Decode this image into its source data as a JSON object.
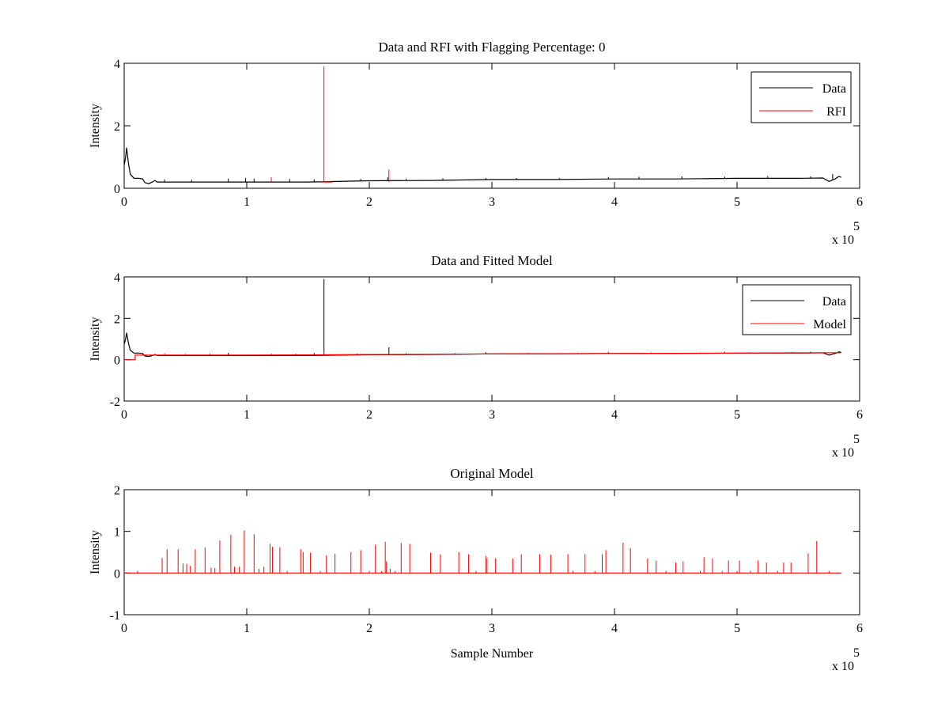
{
  "chart_data": [
    {
      "type": "line",
      "title": "Data and RFI with Flagging Percentage: 0",
      "xlabel": "",
      "ylabel": "Intensity",
      "xlim": [
        0,
        6
      ],
      "ylim": [
        0,
        4
      ],
      "xticks": [
        "0",
        "1",
        "2",
        "3",
        "4",
        "5",
        "6"
      ],
      "yticks": [
        "0",
        "2",
        "4"
      ],
      "x_multiplier_base": "x 10",
      "x_multiplier_exp": "5",
      "legend": {
        "position": "top-right",
        "entries": [
          "Data",
          "RFI"
        ]
      },
      "grid": false,
      "series": [
        {
          "name": "Data",
          "color": "#000000",
          "baseline": [
            [
              0,
              0.75
            ],
            [
              0.01,
              0.95
            ],
            [
              0.02,
              1.3
            ],
            [
              0.035,
              0.8
            ],
            [
              0.05,
              0.45
            ],
            [
              0.08,
              0.32
            ],
            [
              0.12,
              0.32
            ],
            [
              0.15,
              0.3
            ],
            [
              0.17,
              0.18
            ],
            [
              0.2,
              0.15
            ],
            [
              0.23,
              0.2
            ],
            [
              0.25,
              0.25
            ],
            [
              0.27,
              0.2
            ],
            [
              0.4,
              0.2
            ],
            [
              1.0,
              0.2
            ],
            [
              1.5,
              0.2
            ],
            [
              2.0,
              0.24
            ],
            [
              2.5,
              0.25
            ],
            [
              3.0,
              0.28
            ],
            [
              3.5,
              0.28
            ],
            [
              4.0,
              0.3
            ],
            [
              4.5,
              0.3
            ],
            [
              5.0,
              0.32
            ],
            [
              5.5,
              0.32
            ],
            [
              5.7,
              0.33
            ],
            [
              5.75,
              0.22
            ],
            [
              5.8,
              0.3
            ],
            [
              5.83,
              0.38
            ],
            [
              5.85,
              0.35
            ]
          ],
          "spikes": [
            [
              0.33,
              0.28
            ],
            [
              0.55,
              0.27
            ],
            [
              0.85,
              0.31
            ],
            [
              0.99,
              0.33
            ],
            [
              1.06,
              0.31
            ],
            [
              1.2,
              0.28
            ],
            [
              1.35,
              0.3
            ],
            [
              1.55,
              0.29
            ],
            [
              1.93,
              0.3
            ],
            [
              2.15,
              0.35
            ],
            [
              2.3,
              0.3
            ],
            [
              2.6,
              0.32
            ],
            [
              2.95,
              0.33
            ],
            [
              3.2,
              0.33
            ],
            [
              3.55,
              0.33
            ],
            [
              3.95,
              0.36
            ],
            [
              4.2,
              0.37
            ],
            [
              4.55,
              0.38
            ],
            [
              4.9,
              0.37
            ],
            [
              5.25,
              0.39
            ],
            [
              5.6,
              0.38
            ],
            [
              5.78,
              0.46
            ]
          ]
        },
        {
          "name": "RFI",
          "color": "#ff0000",
          "baseline": [
            [
              1.6,
              0.2
            ],
            [
              1.7,
              0.2
            ]
          ],
          "spikes": [
            [
              1.63,
              3.9
            ],
            [
              2.16,
              0.6
            ],
            [
              1.2,
              0.35
            ]
          ]
        }
      ]
    },
    {
      "type": "line",
      "title": "Data and Fitted Model",
      "xlabel": "",
      "ylabel": "Intensity",
      "xlim": [
        0,
        6
      ],
      "ylim": [
        -2,
        4
      ],
      "xticks": [
        "0",
        "1",
        "2",
        "3",
        "4",
        "5",
        "6"
      ],
      "yticks": [
        "-2",
        "0",
        "2",
        "4"
      ],
      "x_multiplier_base": "x 10",
      "x_multiplier_exp": "5",
      "legend": {
        "position": "top-right",
        "entries": [
          "Data",
          "Model"
        ]
      },
      "grid": false,
      "series": [
        {
          "name": "Data",
          "color": "#000000",
          "baseline": [
            [
              0,
              0.75
            ],
            [
              0.01,
              0.95
            ],
            [
              0.02,
              1.3
            ],
            [
              0.035,
              0.8
            ],
            [
              0.05,
              0.45
            ],
            [
              0.08,
              0.32
            ],
            [
              0.12,
              0.32
            ],
            [
              0.15,
              0.3
            ],
            [
              0.17,
              0.18
            ],
            [
              0.2,
              0.15
            ],
            [
              0.23,
              0.2
            ],
            [
              0.25,
              0.25
            ],
            [
              0.27,
              0.2
            ],
            [
              0.4,
              0.2
            ],
            [
              1.0,
              0.2
            ],
            [
              1.5,
              0.2
            ],
            [
              2.0,
              0.24
            ],
            [
              2.5,
              0.25
            ],
            [
              3.0,
              0.28
            ],
            [
              3.5,
              0.28
            ],
            [
              4.0,
              0.3
            ],
            [
              4.5,
              0.3
            ],
            [
              5.0,
              0.32
            ],
            [
              5.5,
              0.32
            ],
            [
              5.7,
              0.33
            ],
            [
              5.75,
              0.22
            ],
            [
              5.8,
              0.3
            ],
            [
              5.83,
              0.38
            ],
            [
              5.85,
              0.35
            ]
          ],
          "spikes": [
            [
              1.63,
              3.9
            ],
            [
              2.16,
              0.6
            ],
            [
              0.85,
              0.33
            ],
            [
              1.55,
              0.32
            ],
            [
              2.95,
              0.36
            ],
            [
              3.95,
              0.38
            ],
            [
              4.9,
              0.38
            ],
            [
              5.6,
              0.39
            ]
          ]
        },
        {
          "name": "Model",
          "color": "#ff0000",
          "baseline": [
            [
              0,
              0.0
            ],
            [
              0.09,
              0.0
            ],
            [
              0.09,
              0.22
            ],
            [
              0.5,
              0.22
            ],
            [
              1.0,
              0.22
            ],
            [
              1.5,
              0.23
            ],
            [
              2.0,
              0.25
            ],
            [
              2.5,
              0.26
            ],
            [
              3.0,
              0.28
            ],
            [
              3.5,
              0.29
            ],
            [
              4.0,
              0.3
            ],
            [
              4.5,
              0.31
            ],
            [
              5.0,
              0.32
            ],
            [
              5.5,
              0.33
            ],
            [
              5.85,
              0.34
            ]
          ],
          "spikes": [
            [
              0.33,
              0.3
            ],
            [
              0.5,
              0.28
            ],
            [
              0.7,
              0.29
            ],
            [
              1.2,
              0.3
            ],
            [
              1.4,
              0.29
            ],
            [
              1.63,
              0.45
            ],
            [
              1.9,
              0.3
            ],
            [
              2.3,
              0.32
            ],
            [
              2.7,
              0.32
            ],
            [
              3.3,
              0.33
            ],
            [
              3.7,
              0.33
            ],
            [
              4.3,
              0.35
            ],
            [
              4.7,
              0.35
            ],
            [
              5.1,
              0.36
            ],
            [
              5.45,
              0.37
            ]
          ]
        }
      ]
    },
    {
      "type": "line",
      "title": "Original Model",
      "xlabel": "Sample Number",
      "ylabel": "Intensity",
      "xlim": [
        0,
        6
      ],
      "ylim": [
        -1,
        2
      ],
      "xticks": [
        "0",
        "1",
        "2",
        "3",
        "4",
        "5",
        "6"
      ],
      "yticks": [
        "-1",
        "0",
        "1",
        "2"
      ],
      "x_multiplier_base": "x 10",
      "x_multiplier_exp": "5",
      "grid": false,
      "series": [
        {
          "color": "#ff0000",
          "baseline": [
            [
              0,
              0.0
            ],
            [
              5.85,
              0.0
            ]
          ],
          "spikes": [
            [
              0.11,
              0.05
            ],
            [
              0.31,
              0.36
            ],
            [
              0.35,
              0.57
            ],
            [
              0.44,
              0.57
            ],
            [
              0.48,
              0.23
            ],
            [
              0.51,
              0.22
            ],
            [
              0.54,
              0.17
            ],
            [
              0.58,
              0.57
            ],
            [
              0.66,
              0.61
            ],
            [
              0.71,
              0.13
            ],
            [
              0.74,
              0.12
            ],
            [
              0.78,
              0.78
            ],
            [
              0.87,
              0.92
            ],
            [
              0.9,
              0.15
            ],
            [
              0.94,
              0.15
            ],
            [
              0.98,
              1.02
            ],
            [
              1.06,
              0.93
            ],
            [
              1.1,
              0.1
            ],
            [
              1.14,
              0.15
            ],
            [
              1.19,
              0.7
            ],
            [
              1.21,
              0.63
            ],
            [
              1.27,
              0.62
            ],
            [
              1.33,
              0.05
            ],
            [
              1.44,
              0.57
            ],
            [
              1.46,
              0.5
            ],
            [
              1.52,
              0.49
            ],
            [
              1.6,
              0.05
            ],
            [
              1.65,
              0.42
            ],
            [
              1.72,
              0.46
            ],
            [
              1.85,
              0.5
            ],
            [
              1.93,
              0.55
            ],
            [
              2.0,
              0.05
            ],
            [
              2.05,
              0.68
            ],
            [
              2.1,
              0.05
            ],
            [
              2.13,
              0.75
            ],
            [
              2.14,
              0.28
            ],
            [
              2.17,
              0.1
            ],
            [
              2.21,
              0.05
            ],
            [
              2.26,
              0.72
            ],
            [
              2.33,
              0.7
            ],
            [
              2.5,
              0.49
            ],
            [
              2.58,
              0.45
            ],
            [
              2.73,
              0.5
            ],
            [
              2.81,
              0.45
            ],
            [
              2.87,
              0.05
            ],
            [
              2.95,
              0.41
            ],
            [
              2.96,
              0.35
            ],
            [
              3.03,
              0.35
            ],
            [
              3.17,
              0.35
            ],
            [
              3.24,
              0.45
            ],
            [
              3.39,
              0.45
            ],
            [
              3.48,
              0.44
            ],
            [
              3.62,
              0.45
            ],
            [
              3.66,
              0.05
            ],
            [
              3.76,
              0.45
            ],
            [
              3.84,
              0.05
            ],
            [
              3.9,
              0.45
            ],
            [
              3.93,
              0.55
            ],
            [
              4.07,
              0.73
            ],
            [
              4.13,
              0.6
            ],
            [
              4.27,
              0.35
            ],
            [
              4.34,
              0.3
            ],
            [
              4.42,
              0.05
            ],
            [
              4.5,
              0.25
            ],
            [
              4.56,
              0.28
            ],
            [
              4.7,
              0.05
            ],
            [
              4.73,
              0.38
            ],
            [
              4.8,
              0.35
            ],
            [
              4.88,
              0.05
            ],
            [
              4.93,
              0.3
            ],
            [
              5.0,
              0.05
            ],
            [
              5.02,
              0.3
            ],
            [
              5.11,
              0.05
            ],
            [
              5.17,
              0.3
            ],
            [
              5.24,
              0.25
            ],
            [
              5.33,
              0.05
            ],
            [
              5.38,
              0.25
            ],
            [
              5.44,
              0.25
            ],
            [
              5.58,
              0.47
            ],
            [
              5.65,
              0.77
            ],
            [
              5.75,
              0.05
            ]
          ]
        }
      ]
    }
  ]
}
